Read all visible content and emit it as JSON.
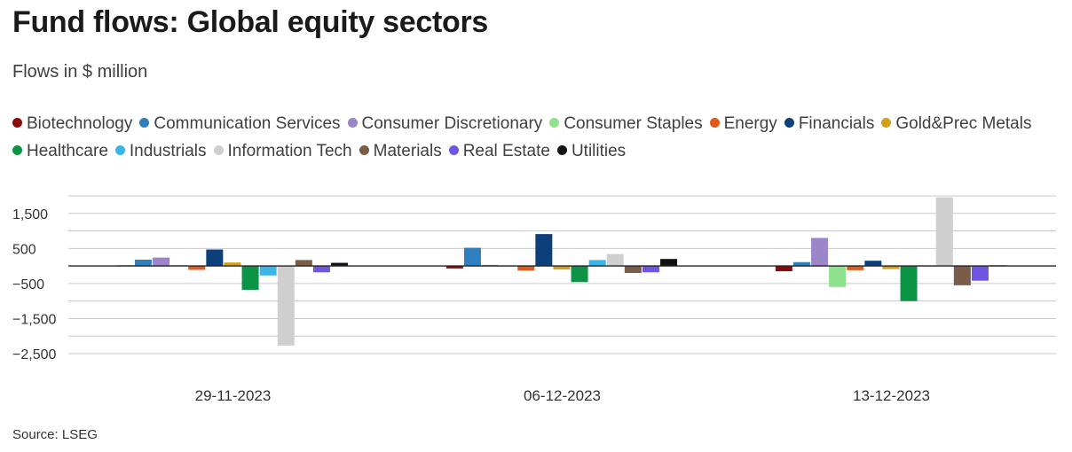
{
  "header": {
    "title": "Fund flows: Global equity sectors",
    "subtitle": "Flows in $ million"
  },
  "footer": {
    "source": "Source: LSEG"
  },
  "chart_data": {
    "type": "bar",
    "title": "Fund flows: Global equity sectors",
    "subtitle": "Flows in $ million",
    "xlabel": "",
    "ylabel": "",
    "ylim": [
      -2500,
      2000
    ],
    "yticks": [
      1500,
      500,
      -500,
      -1500,
      -2500
    ],
    "ytick_labels": [
      "1,500",
      "500",
      "−500",
      "−1,500",
      "−2,500"
    ],
    "grid": true,
    "legend_position": "top",
    "categories": [
      "29-11-2023",
      "06-12-2023",
      "13-12-2023"
    ],
    "series": [
      {
        "name": "Biotechnology",
        "color": "#8b0a0a",
        "values": [
          20,
          -70,
          -150
        ]
      },
      {
        "name": "Communication Services",
        "color": "#2f7fbf",
        "values": [
          180,
          520,
          110
        ]
      },
      {
        "name": "Consumer Discretionary",
        "color": "#9a86c8",
        "values": [
          240,
          30,
          800
        ]
      },
      {
        "name": "Consumer Staples",
        "color": "#8ee28e",
        "values": [
          30,
          20,
          -600
        ]
      },
      {
        "name": "Energy",
        "color": "#e05a1c",
        "values": [
          -110,
          -130,
          -120
        ]
      },
      {
        "name": "Financials",
        "color": "#0d3f7a",
        "values": [
          470,
          910,
          150
        ]
      },
      {
        "name": "Gold&Prec Metals",
        "color": "#d4a017",
        "values": [
          100,
          -100,
          -90
        ]
      },
      {
        "name": "Healthcare",
        "color": "#0b9446",
        "values": [
          -680,
          -460,
          -1000
        ]
      },
      {
        "name": "Industrials",
        "color": "#3bb5e8",
        "values": [
          -270,
          170,
          20
        ]
      },
      {
        "name": "Information Tech",
        "color": "#cfcfcf",
        "values": [
          -2270,
          340,
          1960
        ]
      },
      {
        "name": "Materials",
        "color": "#7b5c48",
        "values": [
          170,
          -200,
          -550
        ]
      },
      {
        "name": "Real Estate",
        "color": "#6e56e0",
        "values": [
          -180,
          -180,
          -420
        ]
      },
      {
        "name": "Utilities",
        "color": "#111111",
        "values": [
          90,
          200,
          20
        ]
      }
    ]
  }
}
